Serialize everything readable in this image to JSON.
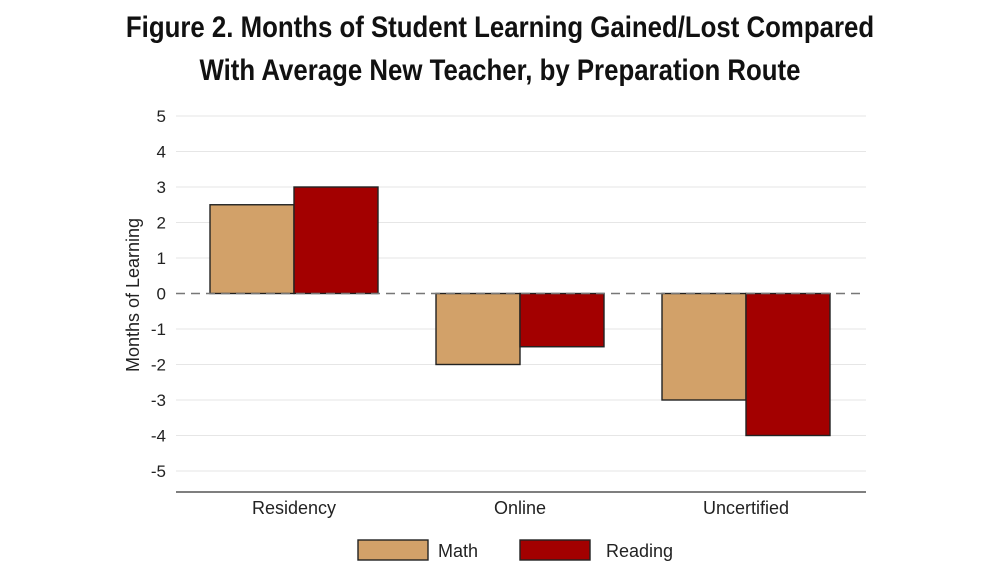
{
  "title_lines": [
    "Figure 2. Months of Student Learning Gained/Lost Compared",
    "With Average New Teacher, by Preparation Route"
  ],
  "chart_data": {
    "type": "bar",
    "title": "Figure 2. Months of Student Learning Gained/Lost Compared With Average New Teacher, by Preparation Route",
    "xlabel": "",
    "ylabel": "Months of Learning",
    "categories": [
      "Residency",
      "Online",
      "Uncertified"
    ],
    "series": [
      {
        "name": "Math",
        "values": [
          2.5,
          -2,
          -3
        ],
        "color": "#D2A169"
      },
      {
        "name": "Reading",
        "values": [
          3,
          -1.5,
          -4
        ],
        "color": "#A30000"
      }
    ],
    "ylim": [
      -5,
      5
    ],
    "yticks": [
      "5",
      "4",
      "3",
      "2",
      "1",
      "0",
      "-1",
      "-2",
      "-3",
      "-4",
      "-5"
    ],
    "grid": true,
    "zero_line": "dashed",
    "legend_position": "bottom"
  }
}
